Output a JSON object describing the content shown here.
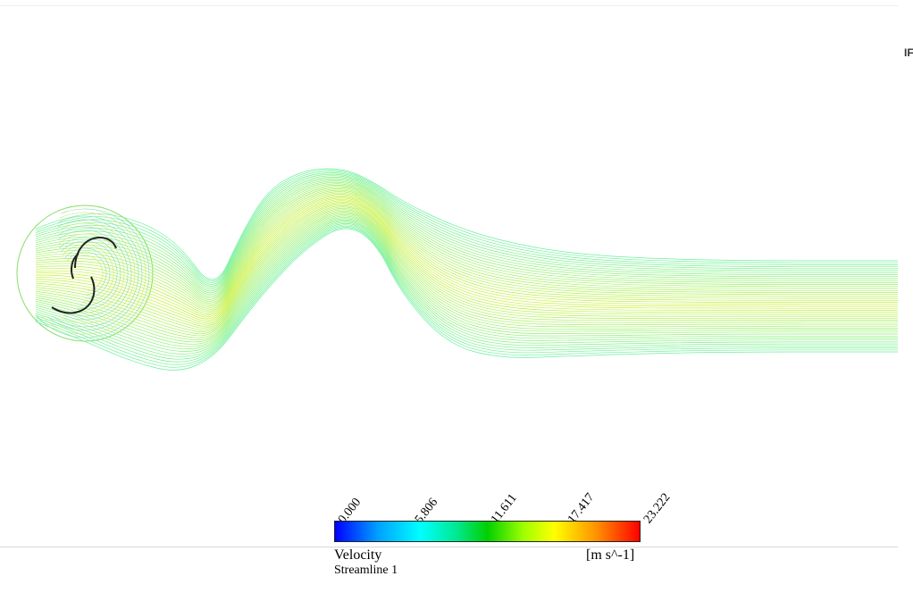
{
  "corner_label": "IF",
  "legend": {
    "variable": "Velocity",
    "plot_name": "Streamline 1",
    "units": "[m s^-1]",
    "ticks": [
      "0.000",
      "5.806",
      "11.611",
      "17.417",
      "23.222"
    ],
    "colormap": [
      "#0000ff",
      "#00ffff",
      "#00d000",
      "#ffff00",
      "#ff0000"
    ]
  }
}
